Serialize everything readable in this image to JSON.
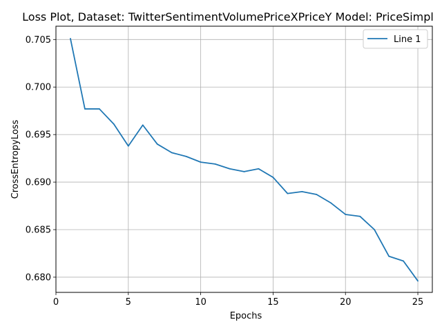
{
  "chart_data": {
    "type": "line",
    "title": "Loss Plot, Dataset: TwitterSentimentVolumePriceXPriceY Model: PriceSimpl",
    "xlabel": "Epochs",
    "ylabel": "CrossEntropyLoss",
    "xlim": [
      0,
      26
    ],
    "ylim": [
      0.6784,
      0.7064
    ],
    "xticks": [
      0,
      5,
      10,
      15,
      20,
      25
    ],
    "yticks": [
      0.68,
      0.685,
      0.69,
      0.695,
      0.7,
      0.705
    ],
    "xtick_labels": [
      "0",
      "5",
      "10",
      "15",
      "20",
      "25"
    ],
    "ytick_labels": [
      "0.680",
      "0.685",
      "0.690",
      "0.695",
      "0.700",
      "0.705"
    ],
    "grid": true,
    "legend_position": "upper right",
    "color": "#1f77b4",
    "series": [
      {
        "name": "Line 1",
        "x": [
          1,
          2,
          3,
          4,
          5,
          6,
          7,
          8,
          9,
          10,
          11,
          12,
          13,
          14,
          15,
          16,
          17,
          18,
          19,
          20,
          21,
          22,
          23,
          24,
          25
        ],
        "y": [
          0.7051,
          0.6977,
          0.6977,
          0.6961,
          0.6938,
          0.696,
          0.694,
          0.6931,
          0.6927,
          0.6921,
          0.6919,
          0.6914,
          0.6911,
          0.6914,
          0.6905,
          0.6888,
          0.689,
          0.6887,
          0.6878,
          0.6866,
          0.6864,
          0.685,
          0.6822,
          0.6817,
          0.6796
        ]
      }
    ]
  }
}
